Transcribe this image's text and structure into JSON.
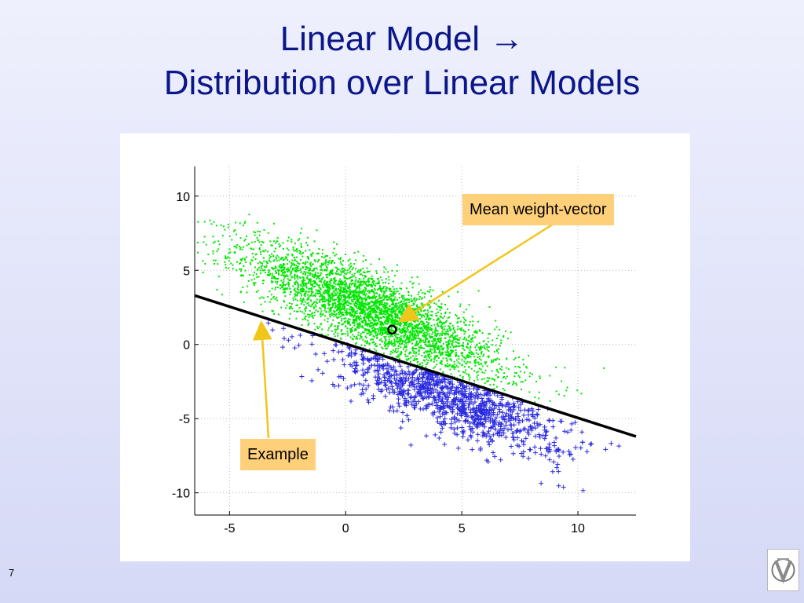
{
  "slide": {
    "title_line1": "Linear Model →",
    "title_line2": "Distribution over Linear Models",
    "slide_number": "7",
    "callouts": {
      "mean": "Mean weight-vector",
      "example": "Example"
    },
    "logo_icon": "university-logo-icon"
  },
  "colors": {
    "title": "#0b1689",
    "green_samples": "#00e600",
    "blue_samples": "#2a2adf",
    "line": "#000000",
    "callout_bg": "#ffd07a",
    "arrow": "#f2c51a"
  },
  "chart_data": {
    "type": "scatter",
    "xlim": [
      -6.5,
      12.5
    ],
    "ylim": [
      -11.5,
      12
    ],
    "xticks": [
      -5,
      0,
      5,
      10
    ],
    "yticks": [
      10,
      5,
      0,
      -5,
      -10
    ],
    "grid": true,
    "series": [
      {
        "marker": "dot",
        "color": "#00e600",
        "distribution": {
          "mean": [
            1.2,
            2.2
          ],
          "cov": [
            [
              7.5,
              -5.0
            ],
            [
              -5.0,
              5.0
            ]
          ],
          "approx_count": 4000,
          "side": "above line"
        }
      },
      {
        "marker": "plus",
        "color": "#2a2adf",
        "distribution": {
          "mean": [
            4.5,
            -3.5
          ],
          "cov": [
            [
              6.0,
              -3.5
            ],
            [
              -3.5,
              3.5
            ]
          ],
          "approx_count": 1000,
          "side": "below line"
        }
      }
    ],
    "example_line": {
      "from": [
        -6.5,
        3.3
      ],
      "to": [
        12.5,
        -6.2
      ]
    },
    "mean_weight_vector": [
      2.0,
      1.0
    ],
    "annotations": [
      "Mean weight-vector",
      "Example"
    ]
  }
}
